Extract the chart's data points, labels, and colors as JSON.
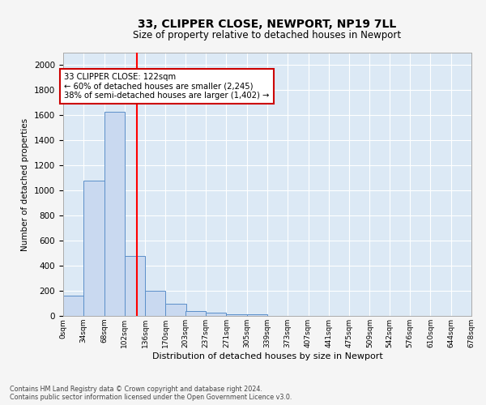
{
  "title": "33, CLIPPER CLOSE, NEWPORT, NP19 7LL",
  "subtitle": "Size of property relative to detached houses in Newport",
  "xlabel": "Distribution of detached houses by size in Newport",
  "ylabel": "Number of detached properties",
  "bar_color": "#c9d9f0",
  "bar_edge_color": "#5b8fc9",
  "background_color": "#dce9f5",
  "grid_color": "#ffffff",
  "bin_labels": [
    "0sqm",
    "34sqm",
    "68sqm",
    "102sqm",
    "136sqm",
    "170sqm",
    "203sqm",
    "237sqm",
    "271sqm",
    "305sqm",
    "339sqm",
    "373sqm",
    "407sqm",
    "441sqm",
    "475sqm",
    "509sqm",
    "542sqm",
    "576sqm",
    "610sqm",
    "644sqm",
    "678sqm"
  ],
  "bin_edges": [
    0,
    34,
    68,
    102,
    136,
    170,
    203,
    237,
    271,
    305,
    339,
    373,
    407,
    441,
    475,
    509,
    542,
    576,
    610,
    644,
    678
  ],
  "bar_heights": [
    160,
    1080,
    1630,
    480,
    200,
    100,
    40,
    25,
    15,
    15,
    0,
    0,
    0,
    0,
    0,
    0,
    0,
    0,
    0,
    0
  ],
  "red_line_x": 122,
  "ylim": [
    0,
    2100
  ],
  "yticks": [
    0,
    200,
    400,
    600,
    800,
    1000,
    1200,
    1400,
    1600,
    1800,
    2000
  ],
  "annotation_text": "33 CLIPPER CLOSE: 122sqm\n← 60% of detached houses are smaller (2,245)\n38% of semi-detached houses are larger (1,402) →",
  "annotation_box_color": "#ffffff",
  "annotation_box_edge_color": "#cc0000",
  "footnote1": "Contains HM Land Registry data © Crown copyright and database right 2024.",
  "footnote2": "Contains public sector information licensed under the Open Government Licence v3.0.",
  "fig_facecolor": "#f5f5f5"
}
